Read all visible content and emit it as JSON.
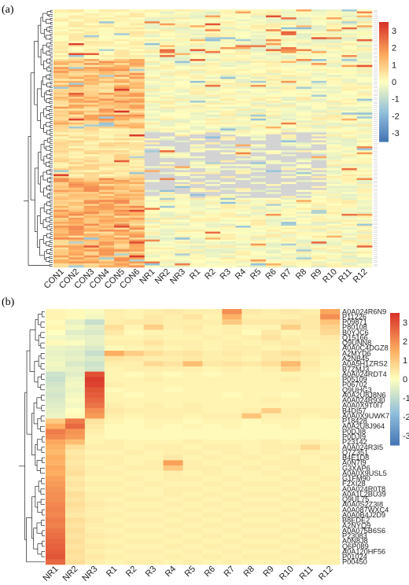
{
  "chart_data": [
    {
      "panel": "(a)",
      "type": "heatmap",
      "columns": [
        "CON1",
        "CON2",
        "CON3",
        "CON4",
        "CON5",
        "CON6",
        "NR1",
        "NR2",
        "NR3",
        "R1",
        "R2",
        "R3",
        "R4",
        "R5",
        "R6",
        "R7",
        "R8",
        "R9",
        "R10",
        "R11",
        "R12"
      ],
      "row_count": 130,
      "row_labels_legible": false,
      "colorbar": {
        "ticks": [
          3,
          2,
          1,
          0,
          -1,
          -2,
          -3
        ],
        "range": [
          -3.5,
          3.5
        ],
        "low_color": "#4575b4",
        "mid_color": "#ffffbf",
        "high_color": "#d73027",
        "missing_color": "#d3d3d3"
      },
      "dendrogram": "rows",
      "pattern_note": "CON1-CON6 mostly positive (upper-mid and lower blocks), NR/R columns near zero with scattered highs; grey missing block in middle region"
    },
    {
      "panel": "(b)",
      "type": "heatmap",
      "columns": [
        "NR1",
        "NR2",
        "NR3",
        "R1",
        "R2",
        "R3",
        "R4",
        "R5",
        "R6",
        "R7",
        "R8",
        "R9",
        "R10",
        "R11",
        "R12"
      ],
      "rows": [
        "A0A024R6N9",
        "P11226",
        "P09871",
        "P80108",
        "B0YJC6",
        "Q15166",
        "Q9UNN8",
        "A0A0C4DGZ8",
        "A2MYD6",
        "A2NB45",
        "A0A5H1ZRS2",
        "B7ZMJ3",
        "A0A024RDT4",
        "P05109",
        "P06702",
        "Q9UHG3",
        "A0A2U8J8N6",
        "A0A024R930",
        "A0A0X9T0I7",
        "B4DI57",
        "A0A0X9UWK7",
        "P18428",
        "A0A2U8J964",
        "P0DJI8",
        "P0DJI9",
        "P23142",
        "A0A024R3I5",
        "Q7Z351",
        "B4E1D8",
        "A0N7I9",
        "G3XAP6",
        "A0A0X9USL5",
        "G1FM90",
        "F2XI28",
        "A0A024R0T8",
        "A0A1L2BU39",
        "Q9UL75",
        "A0A0S2Z3I8",
        "A0A087WXC4",
        "A0A0B4J2D9",
        "B8EDE2",
        "A2NYQ9",
        "A0A075B6S6",
        "P23083",
        "A0N8J8",
        "Q6P089",
        "A0A120HF56",
        "P01024",
        "P00450"
      ],
      "colorbar": {
        "ticks": [
          3,
          2,
          1,
          0,
          -1,
          -2,
          -3
        ],
        "range": [
          -3.5,
          3.5
        ]
      },
      "dendrogram": "rows",
      "values_approx": [
        [
          0.2,
          0.1,
          -0.1,
          0.3,
          0.2,
          0.3,
          0.4,
          0.3,
          0.3,
          2.0,
          0.4,
          0.3,
          0.4,
          0.3,
          1.6
        ],
        [
          0.2,
          0.1,
          -0.2,
          0.3,
          0.2,
          0.4,
          0.3,
          0.5,
          0.2,
          1.4,
          0.3,
          0.3,
          0.3,
          0.4,
          2.0
        ],
        [
          0.1,
          -0.4,
          -0.9,
          0.3,
          0.4,
          0.4,
          0.3,
          0.3,
          0.3,
          1.0,
          0.4,
          0.4,
          0.5,
          0.4,
          1.1
        ],
        [
          0.2,
          -0.2,
          -0.5,
          0.6,
          0.2,
          0.9,
          0.3,
          0.4,
          0.2,
          0.3,
          0.2,
          0.2,
          0.9,
          0.4,
          0.8
        ],
        [
          0.0,
          -0.5,
          -0.6,
          0.4,
          0.1,
          0.2,
          0.2,
          0.3,
          0.2,
          0.3,
          0.1,
          0.4,
          0.2,
          0.3,
          0.7
        ],
        [
          -0.2,
          -0.3,
          -0.4,
          0.2,
          0.2,
          0.3,
          0.2,
          0.2,
          0.3,
          0.2,
          0.3,
          0.5,
          0.3,
          0.3,
          0.4
        ],
        [
          0.1,
          -0.1,
          -0.4,
          0.3,
          0.3,
          0.5,
          0.3,
          0.3,
          0.2,
          0.3,
          0.2,
          0.3,
          0.4,
          0.2,
          0.3
        ],
        [
          -0.3,
          -0.4,
          -0.6,
          0.1,
          0.2,
          0.3,
          0.2,
          0.3,
          0.2,
          0.3,
          0.3,
          0.2,
          0.3,
          0.3,
          0.3
        ],
        [
          -0.4,
          -0.5,
          -0.9,
          1.5,
          0.9,
          0.6,
          0.4,
          0.5,
          0.3,
          0.4,
          0.3,
          0.4,
          0.6,
          0.4,
          0.3
        ],
        [
          -0.3,
          -0.4,
          -0.6,
          0.5,
          0.4,
          0.3,
          0.3,
          0.4,
          0.3,
          0.3,
          0.2,
          0.4,
          0.4,
          0.3,
          0.2
        ],
        [
          -0.2,
          -0.6,
          -0.8,
          0.3,
          0.3,
          0.7,
          0.5,
          1.2,
          0.4,
          0.5,
          0.4,
          0.6,
          1.3,
          0.4,
          0.2
        ],
        [
          -0.3,
          -0.4,
          -0.7,
          0.2,
          0.3,
          0.3,
          0.3,
          0.3,
          0.2,
          0.3,
          0.2,
          0.3,
          0.8,
          0.3,
          0.2
        ],
        [
          -0.8,
          -0.5,
          3.0,
          0.2,
          0.1,
          0.2,
          0.1,
          0.2,
          0.1,
          0.2,
          0.2,
          0.2,
          0.2,
          0.2,
          0.1
        ],
        [
          -0.9,
          -0.3,
          3.3,
          0.2,
          0.2,
          0.3,
          0.2,
          0.2,
          0.2,
          0.2,
          0.2,
          0.2,
          0.3,
          0.2,
          0.2
        ],
        [
          -0.7,
          -0.2,
          3.2,
          0.3,
          0.2,
          0.2,
          0.2,
          0.2,
          0.2,
          0.2,
          0.2,
          0.2,
          0.2,
          0.2,
          0.2
        ],
        [
          -0.6,
          -0.3,
          2.9,
          0.1,
          0.2,
          0.2,
          0.1,
          0.2,
          0.2,
          0.2,
          0.2,
          0.2,
          0.2,
          0.2,
          0.2
        ],
        [
          -0.7,
          -0.2,
          2.8,
          0.2,
          0.1,
          0.2,
          0.2,
          0.2,
          0.2,
          0.1,
          0.2,
          0.2,
          0.1,
          0.2,
          0.2
        ],
        [
          -0.6,
          -0.1,
          2.6,
          0.2,
          0.2,
          0.2,
          0.2,
          0.2,
          0.2,
          0.2,
          0.2,
          0.3,
          0.2,
          0.2,
          0.2
        ],
        [
          -0.5,
          -0.2,
          2.4,
          0.3,
          0.2,
          0.3,
          0.2,
          0.3,
          0.2,
          0.2,
          0.2,
          0.2,
          0.2,
          0.2,
          0.2
        ],
        [
          -0.4,
          0.0,
          2.0,
          0.4,
          0.3,
          0.3,
          0.3,
          0.3,
          0.2,
          0.2,
          0.3,
          0.9,
          0.3,
          0.3,
          0.3
        ],
        [
          -0.3,
          0.1,
          1.8,
          0.3,
          0.2,
          0.3,
          0.3,
          0.2,
          0.3,
          0.3,
          1.1,
          0.3,
          0.3,
          0.2,
          0.3
        ],
        [
          1.0,
          2.3,
          0.5,
          0.2,
          0.1,
          0.2,
          0.2,
          0.1,
          0.2,
          0.2,
          0.1,
          0.2,
          0.2,
          0.1,
          0.1
        ],
        [
          1.5,
          2.6,
          0.4,
          0.1,
          0.1,
          0.2,
          0.1,
          0.2,
          0.1,
          0.2,
          0.1,
          0.1,
          0.2,
          0.1,
          0.1
        ],
        [
          2.3,
          1.9,
          0.3,
          0.1,
          0.1,
          0.1,
          0.1,
          0.1,
          0.1,
          0.1,
          0.1,
          0.1,
          0.1,
          0.1,
          0.1
        ],
        [
          2.1,
          1.8,
          0.2,
          0.1,
          0.1,
          0.1,
          0.1,
          0.1,
          0.1,
          0.1,
          0.1,
          0.1,
          0.1,
          0.1,
          0.1
        ],
        [
          1.6,
          1.2,
          0.2,
          0.3,
          0.2,
          0.2,
          0.2,
          0.3,
          0.2,
          0.2,
          0.2,
          0.3,
          0.2,
          0.3,
          0.2
        ],
        [
          1.4,
          0.6,
          0.3,
          0.3,
          0.2,
          0.3,
          0.3,
          0.2,
          0.3,
          0.3,
          0.2,
          0.3,
          0.3,
          0.7,
          0.3
        ],
        [
          1.3,
          0.4,
          0.2,
          0.2,
          0.3,
          0.2,
          0.3,
          0.3,
          0.2,
          0.3,
          0.2,
          0.3,
          0.2,
          0.3,
          0.2
        ],
        [
          1.5,
          0.5,
          0.3,
          0.3,
          0.2,
          0.2,
          0.4,
          0.2,
          0.3,
          0.2,
          0.3,
          0.2,
          0.3,
          0.2,
          0.3
        ],
        [
          1.4,
          0.4,
          0.2,
          0.3,
          0.2,
          0.3,
          1.7,
          0.3,
          0.2,
          0.3,
          0.2,
          0.3,
          0.3,
          0.2,
          0.2
        ],
        [
          1.6,
          0.5,
          0.3,
          0.2,
          0.3,
          0.3,
          1.0,
          0.3,
          0.3,
          0.2,
          0.3,
          0.2,
          0.3,
          0.3,
          0.2
        ],
        [
          1.5,
          0.6,
          0.3,
          0.3,
          0.2,
          0.2,
          0.3,
          0.2,
          0.3,
          0.2,
          0.2,
          0.3,
          0.2,
          0.3,
          0.2
        ],
        [
          1.7,
          0.4,
          0.2,
          0.2,
          0.3,
          0.2,
          0.3,
          0.3,
          0.2,
          0.3,
          0.2,
          0.2,
          0.3,
          0.2,
          0.3
        ],
        [
          1.8,
          0.5,
          0.3,
          0.3,
          0.2,
          0.3,
          0.2,
          0.2,
          0.3,
          0.2,
          0.3,
          0.3,
          0.2,
          0.3,
          0.2
        ],
        [
          1.9,
          0.4,
          0.2,
          0.2,
          0.3,
          0.2,
          0.3,
          0.3,
          0.2,
          0.3,
          0.2,
          0.2,
          0.3,
          0.2,
          0.3
        ],
        [
          2.0,
          0.6,
          0.3,
          0.3,
          0.2,
          0.2,
          0.3,
          0.2,
          0.3,
          0.2,
          0.3,
          0.3,
          0.2,
          0.3,
          0.2
        ],
        [
          2.0,
          0.5,
          0.3,
          0.2,
          0.3,
          0.3,
          0.2,
          0.3,
          0.2,
          0.3,
          0.2,
          0.2,
          0.3,
          0.2,
          0.3
        ],
        [
          2.1,
          0.6,
          0.4,
          0.3,
          0.2,
          0.2,
          0.3,
          0.2,
          0.3,
          0.2,
          0.3,
          0.3,
          0.2,
          0.3,
          0.2
        ],
        [
          2.2,
          0.5,
          0.3,
          0.2,
          0.3,
          0.3,
          0.2,
          0.3,
          0.2,
          0.3,
          0.2,
          0.2,
          0.3,
          0.2,
          0.3
        ],
        [
          2.1,
          0.4,
          0.3,
          0.3,
          0.2,
          0.2,
          0.3,
          0.2,
          0.3,
          0.2,
          0.3,
          0.3,
          0.2,
          0.3,
          0.2
        ],
        [
          2.3,
          0.6,
          0.4,
          0.2,
          0.3,
          0.3,
          0.2,
          0.3,
          0.2,
          0.3,
          0.2,
          0.2,
          0.3,
          0.2,
          0.3
        ],
        [
          2.2,
          0.5,
          0.3,
          0.3,
          0.2,
          0.2,
          0.3,
          0.2,
          0.3,
          0.2,
          0.3,
          0.3,
          0.2,
          0.3,
          0.2
        ],
        [
          2.4,
          0.6,
          0.3,
          0.2,
          0.3,
          0.3,
          0.2,
          0.3,
          0.2,
          0.3,
          0.2,
          0.2,
          0.3,
          0.2,
          0.3
        ],
        [
          2.5,
          0.5,
          0.4,
          0.3,
          0.2,
          0.2,
          0.3,
          0.2,
          0.3,
          0.2,
          0.3,
          0.3,
          0.2,
          0.3,
          0.2
        ],
        [
          2.6,
          0.6,
          0.3,
          0.2,
          0.3,
          0.3,
          0.2,
          0.3,
          0.2,
          0.3,
          0.2,
          0.2,
          0.3,
          0.2,
          0.3
        ],
        [
          2.7,
          0.5,
          0.4,
          0.3,
          0.2,
          0.2,
          0.3,
          0.2,
          0.3,
          0.2,
          0.3,
          0.3,
          0.2,
          0.3,
          0.2
        ],
        [
          2.8,
          0.6,
          0.3,
          0.2,
          0.3,
          0.3,
          0.2,
          0.3,
          0.2,
          0.3,
          0.2,
          0.2,
          0.3,
          0.2,
          0.3
        ],
        [
          2.9,
          0.5,
          0.4,
          0.3,
          0.2,
          0.2,
          0.3,
          0.2,
          0.3,
          0.2,
          0.3,
          0.3,
          0.2,
          0.3,
          0.2
        ],
        [
          2.6,
          0.6,
          0.3,
          0.2,
          0.3,
          0.3,
          0.2,
          0.3,
          0.2,
          0.3,
          0.2,
          0.2,
          0.3,
          0.2,
          0.3
        ]
      ]
    }
  ]
}
